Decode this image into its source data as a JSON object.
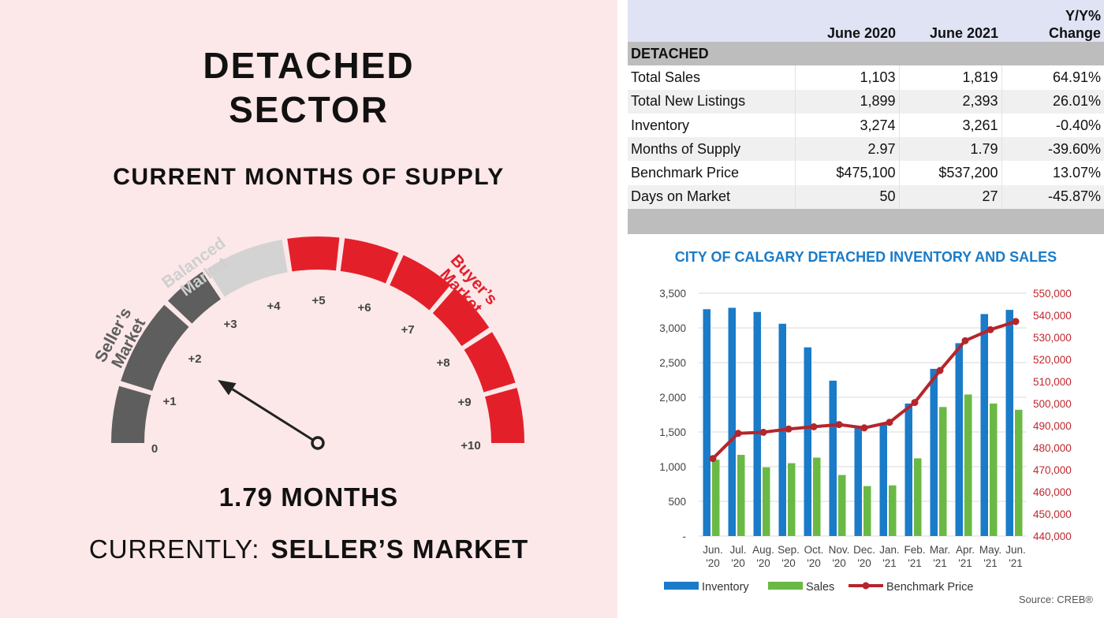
{
  "left": {
    "title_line1": "DETACHED",
    "title_line2": "SECTOR",
    "subtitle": "CURRENT MONTHS OF SUPPLY",
    "gauge": {
      "value": 1.79,
      "min": 0,
      "max": 10,
      "ticks": [
        "0",
        "+1",
        "+2",
        "+3",
        "+4",
        "+5",
        "+6",
        "+7",
        "+8",
        "+9",
        "+10"
      ],
      "zones": [
        {
          "label_lines": [
            "Seller’s",
            "Market"
          ],
          "color": "#5e5e5e"
        },
        {
          "label_lines": [
            "Balanced",
            "Market"
          ],
          "color": "#d3d3d3"
        },
        {
          "label_lines": [
            "Buyer’s",
            "Market"
          ],
          "color": "#e3202a"
        }
      ]
    },
    "months_text": "1.79 MONTHS",
    "currently_label": "CURRENTLY:",
    "currently_value": "SELLER’S MARKET"
  },
  "table": {
    "headers": [
      "",
      "June 2020",
      "June 2021",
      "Y/Y%",
      "Change"
    ],
    "section": "DETACHED",
    "rows": [
      {
        "label": "Total Sales",
        "v2020": "1,103",
        "v2021": "1,819",
        "change": "64.91%"
      },
      {
        "label": "Total New Listings",
        "v2020": "1,899",
        "v2021": "2,393",
        "change": "26.01%"
      },
      {
        "label": "Inventory",
        "v2020": "3,274",
        "v2021": "3,261",
        "change": "-0.40%"
      },
      {
        "label": "Months of Supply",
        "v2020": "2.97",
        "v2021": "1.79",
        "change": "-39.60%"
      },
      {
        "label": "Benchmark Price",
        "v2020": "$475,100",
        "v2021": "$537,200",
        "change": "13.07%"
      },
      {
        "label": "Days on Market",
        "v2020": "50",
        "v2021": "27",
        "change": "-45.87%"
      }
    ]
  },
  "chart_title": "CITY OF CALGARY DETACHED INVENTORY AND SALES",
  "source": "Source: CREB®",
  "chart_data": {
    "type": "bar",
    "title": "CITY OF CALGARY DETACHED INVENTORY AND SALES",
    "categories": [
      [
        "Jun.",
        "'20"
      ],
      [
        "Jul.",
        "'20"
      ],
      [
        "Aug.",
        "'20"
      ],
      [
        "Sep.",
        "'20"
      ],
      [
        "Oct.",
        "'20"
      ],
      [
        "Nov.",
        "'20"
      ],
      [
        "Dec.",
        "'20"
      ],
      [
        "Jan.",
        "'21"
      ],
      [
        "Feb.",
        "'21"
      ],
      [
        "Mar.",
        "'21"
      ],
      [
        "Apr.",
        "'21"
      ],
      [
        "May.",
        "'21"
      ],
      [
        "Jun.",
        "'21"
      ]
    ],
    "series": [
      {
        "name": "Inventory",
        "type": "bar",
        "axis": "left",
        "color": "#1a7bc8",
        "values": [
          3270,
          3290,
          3230,
          3060,
          2720,
          2240,
          1580,
          1630,
          1910,
          2410,
          2780,
          3200,
          3260
        ]
      },
      {
        "name": "Sales",
        "type": "bar",
        "axis": "left",
        "color": "#6ab945",
        "values": [
          1100,
          1170,
          990,
          1050,
          1130,
          880,
          720,
          730,
          1120,
          1860,
          2040,
          1910,
          1820
        ]
      },
      {
        "name": "Benchmark Price",
        "type": "line",
        "axis": "right",
        "color": "#b5252c",
        "values": [
          475100,
          486500,
          487000,
          488500,
          489500,
          490500,
          489000,
          491500,
          500500,
          515000,
          528500,
          533500,
          537200
        ]
      }
    ],
    "y_left": {
      "ylim": [
        0,
        3500
      ],
      "ticks": [
        "-",
        "500",
        "1,000",
        "1,500",
        "2,000",
        "2,500",
        "3,000",
        "3,500"
      ],
      "tick_values": [
        0,
        500,
        1000,
        1500,
        2000,
        2500,
        3000,
        3500
      ]
    },
    "y_right": {
      "ylim": [
        440000,
        550000
      ],
      "ticks": [
        "440,000",
        "450,000",
        "460,000",
        "470,000",
        "480,000",
        "490,000",
        "500,000",
        "510,000",
        "520,000",
        "530,000",
        "540,000",
        "550,000"
      ],
      "tick_values": [
        440000,
        450000,
        460000,
        470000,
        480000,
        490000,
        500000,
        510000,
        520000,
        530000,
        540000,
        550000
      ]
    },
    "grid": true,
    "legend_position": "bottom-left"
  }
}
